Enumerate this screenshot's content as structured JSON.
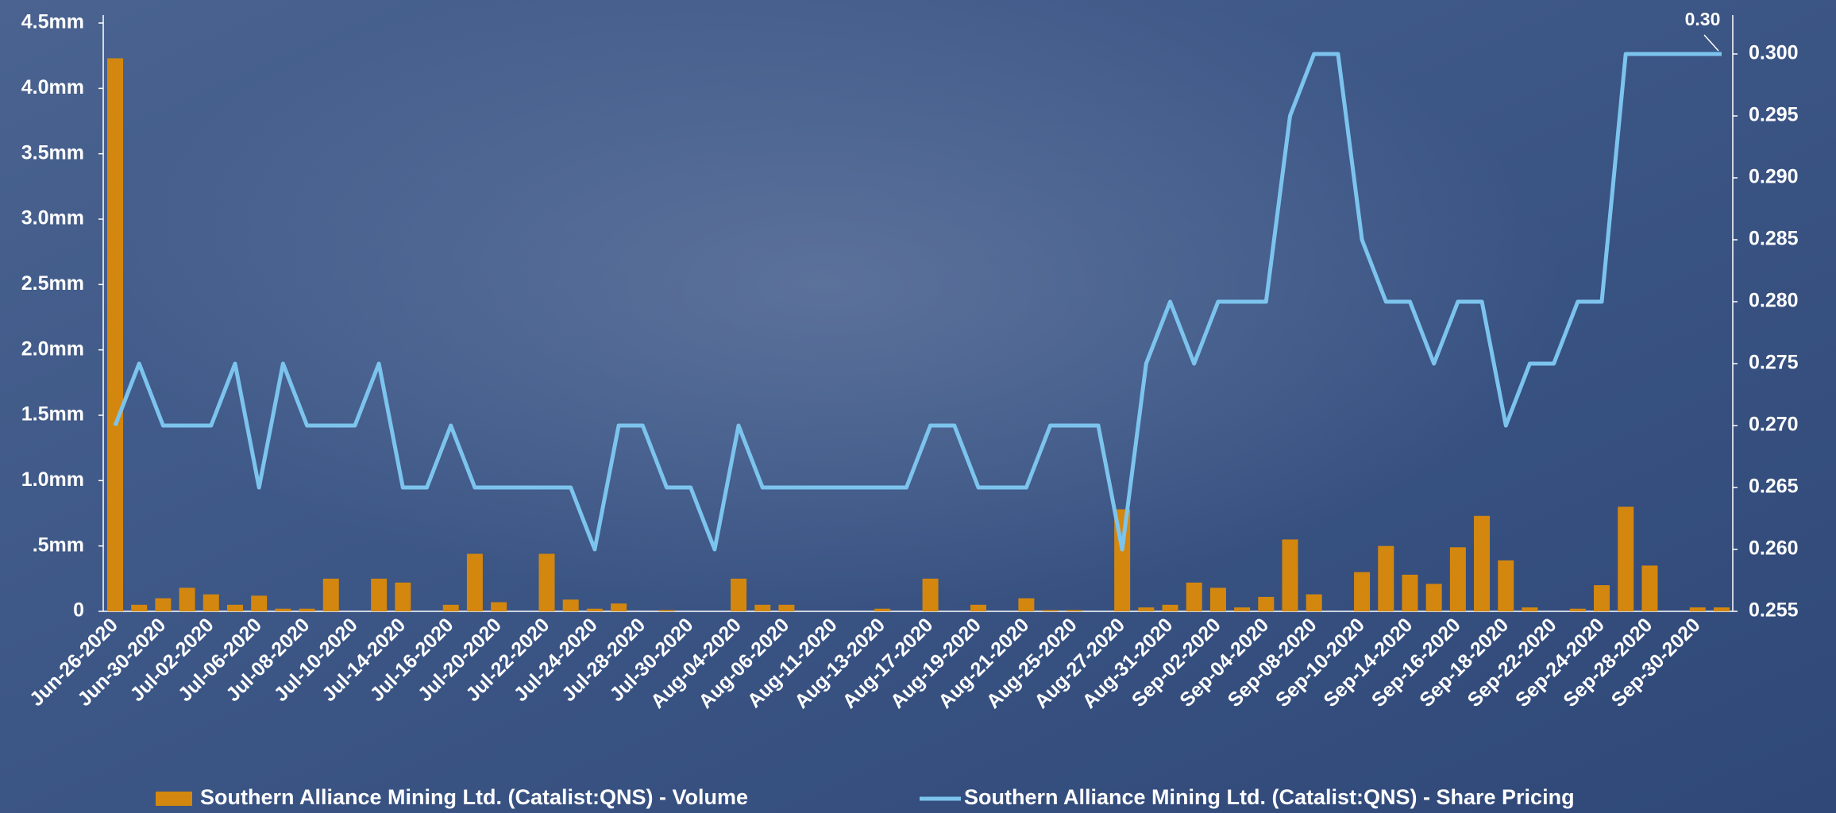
{
  "chart_data": {
    "type": "bar",
    "categories": [
      "Jun-26-2020",
      null,
      "Jun-30-2020",
      null,
      "Jul-02-2020",
      null,
      "Jul-06-2020",
      null,
      "Jul-08-2020",
      null,
      "Jul-10-2020",
      null,
      "Jul-14-2020",
      null,
      "Jul-16-2020",
      null,
      "Jul-20-2020",
      null,
      "Jul-22-2020",
      null,
      "Jul-24-2020",
      null,
      "Jul-28-2020",
      null,
      "Jul-30-2020",
      null,
      "Aug-04-2020",
      null,
      "Aug-06-2020",
      null,
      "Aug-11-2020",
      null,
      "Aug-13-2020",
      null,
      "Aug-17-2020",
      null,
      "Aug-19-2020",
      null,
      "Aug-21-2020",
      null,
      "Aug-25-2020",
      null,
      "Aug-27-2020",
      null,
      "Aug-31-2020",
      null,
      "Sep-02-2020",
      null,
      "Sep-04-2020",
      null,
      "Sep-08-2020",
      null,
      "Sep-10-2020",
      null,
      "Sep-14-2020",
      null,
      "Sep-16-2020",
      null,
      "Sep-18-2020",
      null,
      "Sep-22-2020",
      null,
      "Sep-24-2020",
      null,
      "Sep-28-2020",
      null,
      "Sep-30-2020",
      null
    ],
    "series": [
      {
        "name": "Southern Alliance Mining Ltd. (Catalist:QNS) - Volume",
        "type": "bar",
        "color": "#d4870e",
        "values": [
          4.23,
          0.05,
          0.1,
          0.18,
          0.13,
          0.05,
          0.12,
          0.02,
          0.02,
          0.25,
          0,
          0.25,
          0.22,
          0,
          0.05,
          0.44,
          0.07,
          0,
          0.44,
          0.09,
          0.02,
          0.06,
          0,
          0.01,
          0,
          0,
          0.25,
          0.05,
          0.05,
          0,
          0,
          0,
          0.02,
          0,
          0.25,
          0,
          0.05,
          0,
          0.1,
          0.01,
          0.01,
          0,
          0.78,
          0.03,
          0.05,
          0.22,
          0.18,
          0.03,
          0.11,
          0.55,
          0.13,
          0,
          0.3,
          0.5,
          0.28,
          0.21,
          0.49,
          0.73,
          0.39,
          0.03,
          0,
          0.02,
          0.2,
          0.8,
          0.35,
          0,
          0.03,
          0.03
        ]
      },
      {
        "name": "Southern Alliance Mining Ltd. (Catalist:QNS) - Share Pricing",
        "type": "line",
        "axis": "y2",
        "color": "#7cc4ee",
        "values": [
          0.27,
          0.275,
          0.27,
          0.27,
          0.27,
          0.275,
          0.265,
          0.275,
          0.27,
          0.27,
          0.27,
          0.275,
          0.265,
          0.265,
          0.27,
          0.265,
          0.265,
          0.265,
          0.265,
          0.265,
          0.26,
          0.27,
          0.27,
          0.265,
          0.265,
          0.26,
          0.27,
          0.265,
          0.265,
          0.265,
          0.265,
          0.265,
          0.265,
          0.265,
          0.27,
          0.27,
          0.265,
          0.265,
          0.265,
          0.27,
          0.27,
          0.27,
          0.26,
          0.275,
          0.28,
          0.275,
          0.28,
          0.28,
          0.28,
          0.295,
          0.3,
          0.3,
          0.285,
          0.28,
          0.28,
          0.275,
          0.28,
          0.28,
          0.27,
          0.275,
          0.275,
          0.28,
          0.28,
          0.3,
          0.3,
          0.3,
          0.3,
          0.3
        ],
        "value_labels": [
          null,
          null,
          null,
          null,
          null,
          null,
          null,
          null,
          null,
          null,
          null,
          null,
          null,
          null,
          null,
          null,
          null,
          null,
          null,
          null,
          null,
          null,
          null,
          null,
          null,
          null,
          null,
          null,
          null,
          null,
          null,
          null,
          null,
          null,
          null,
          null,
          null,
          null,
          null,
          null,
          null,
          null,
          null,
          null,
          null,
          null,
          null,
          null,
          null,
          null,
          null,
          null,
          null,
          null,
          null,
          null,
          null,
          null,
          null,
          null,
          null,
          null,
          null,
          null,
          null,
          null,
          null,
          "0.30"
        ]
      }
    ],
    "ylim": [
      0,
      4.5
    ],
    "yticks": [
      0,
      {
        "value": 0.5,
        "label": ".5mm"
      },
      {
        "value": 1,
        "label": "1.0mm"
      },
      {
        "value": 1.5,
        "label": "1.5mm"
      },
      {
        "value": 2,
        "label": "2.0mm"
      },
      {
        "value": 2.5,
        "label": "2.5mm"
      },
      {
        "value": 3,
        "label": "3.0mm"
      },
      {
        "value": 3.5,
        "label": "3.5mm"
      },
      {
        "value": 4,
        "label": "4.0mm"
      },
      {
        "value": 4.5,
        "label": "4.5mm"
      }
    ],
    "y2lim": [
      0.255,
      0.3025
    ],
    "y2ticks": [
      0.255,
      {
        "value": 0.26,
        "label": "0.260"
      },
      0.265,
      {
        "value": 0.27,
        "label": "0.270"
      },
      0.275,
      {
        "value": 0.28,
        "label": "0.280"
      },
      0.285,
      {
        "value": 0.29,
        "label": "0.290"
      },
      0.295,
      {
        "value": 0.3,
        "label": "0.300"
      }
    ],
    "grid": false,
    "legend": "bottom"
  }
}
